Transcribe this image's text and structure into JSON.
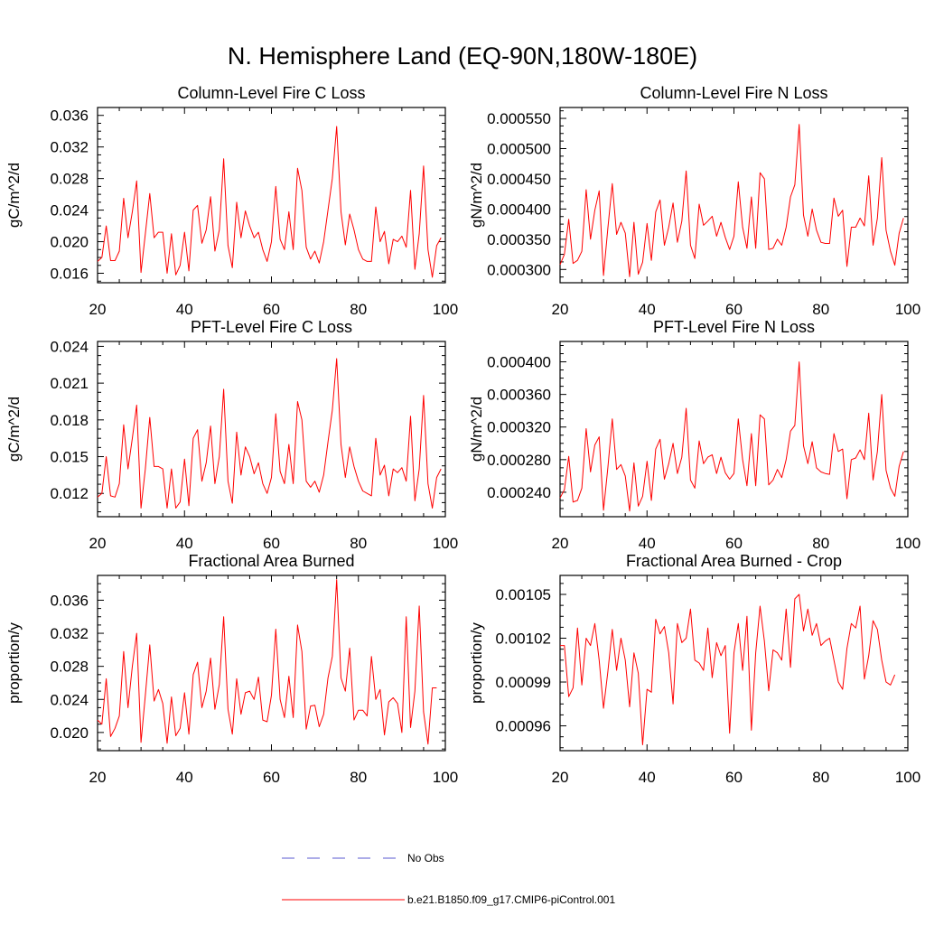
{
  "title": "N. Hemisphere Land (EQ-90N,180W-180E)",
  "colors": {
    "model": "#ff0000",
    "obs": "#5a5ad0",
    "axis": "#000000"
  },
  "legend": {
    "obs_label": "No Obs",
    "model_label": "b.e21.B1850.f09_g17.CMIP6-piControl.001"
  },
  "chart_data": [
    {
      "type": "line",
      "title": "Column-Level Fire C Loss",
      "ylabel": "gC/m^2/d",
      "xlabel": "",
      "xlim": [
        20,
        100
      ],
      "ylim": [
        0.0148,
        0.037
      ],
      "xticks": [
        20,
        40,
        60,
        80,
        100
      ],
      "xtick_labels": [
        "20",
        "40",
        "60",
        "80",
        "100"
      ],
      "yticks": [
        0.016,
        0.02,
        0.024,
        0.028,
        0.032,
        0.036
      ],
      "ytick_labels": [
        "0.016",
        "0.020",
        "0.024",
        "0.028",
        "0.032",
        "0.036"
      ],
      "series": [
        {
          "name": "b.e21.B1850.f09_g17.CMIP6-piControl.001",
          "x_start": 20,
          "values": [
            0.0175,
            0.018,
            0.022,
            0.0176,
            0.0176,
            0.0188,
            0.0255,
            0.0205,
            0.0238,
            0.0277,
            0.0161,
            0.021,
            0.0261,
            0.0205,
            0.0212,
            0.0212,
            0.016,
            0.021,
            0.0158,
            0.017,
            0.0212,
            0.0163,
            0.024,
            0.0246,
            0.0198,
            0.0215,
            0.0257,
            0.0188,
            0.0215,
            0.0305,
            0.0195,
            0.0167,
            0.025,
            0.0205,
            0.0239,
            0.022,
            0.0205,
            0.0212,
            0.019,
            0.0175,
            0.02,
            0.027,
            0.0203,
            0.019,
            0.0238,
            0.019,
            0.0293,
            0.0265,
            0.0193,
            0.0178,
            0.0188,
            0.0173,
            0.02,
            0.024,
            0.028,
            0.0346,
            0.0238,
            0.0196,
            0.0235,
            0.0215,
            0.019,
            0.0178,
            0.0175,
            0.0175,
            0.0244,
            0.02,
            0.0213,
            0.0172,
            0.0203,
            0.02,
            0.0207,
            0.0193,
            0.0265,
            0.0165,
            0.021,
            0.0296,
            0.019,
            0.0155,
            0.0195,
            0.0205
          ]
        }
      ]
    },
    {
      "type": "line",
      "title": "Column-Level Fire N Loss",
      "ylabel": "gN/m^2/d",
      "xlabel": "",
      "xlim": [
        20,
        100
      ],
      "ylim": [
        0.000278,
        0.000568
      ],
      "xticks": [
        20,
        40,
        60,
        80,
        100
      ],
      "xtick_labels": [
        "20",
        "40",
        "60",
        "80",
        "100"
      ],
      "yticks": [
        0.0003,
        0.00035,
        0.0004,
        0.00045,
        0.0005,
        0.00055
      ],
      "ytick_labels": [
        "0.000300",
        "0.000350",
        "0.000400",
        "0.000450",
        "0.000500",
        "0.000550"
      ],
      "series": [
        {
          "name": "b.e21.B1850.f09_g17.CMIP6-piControl.001",
          "x_start": 20,
          "values": [
            0.000308,
            0.000325,
            0.000383,
            0.00031,
            0.000315,
            0.00033,
            0.000432,
            0.00035,
            0.000398,
            0.00043,
            0.00029,
            0.000368,
            0.000442,
            0.000358,
            0.000378,
            0.00036,
            0.000288,
            0.000378,
            0.000292,
            0.000312,
            0.000376,
            0.000315,
            0.000395,
            0.000415,
            0.00034,
            0.00037,
            0.00041,
            0.000345,
            0.00038,
            0.000463,
            0.00034,
            0.000318,
            0.000408,
            0.000373,
            0.00038,
            0.000388,
            0.000355,
            0.000378,
            0.000353,
            0.000333,
            0.000355,
            0.000445,
            0.00037,
            0.000335,
            0.00042,
            0.000335,
            0.00046,
            0.00045,
            0.000333,
            0.000335,
            0.00035,
            0.00034,
            0.00037,
            0.00042,
            0.00044,
            0.00054,
            0.00039,
            0.000355,
            0.0004,
            0.000365,
            0.000345,
            0.000343,
            0.000343,
            0.000418,
            0.000388,
            0.000398,
            0.000305,
            0.00037,
            0.00037,
            0.000385,
            0.000372,
            0.000455,
            0.00034,
            0.000385,
            0.000485,
            0.000365,
            0.00033,
            0.000307,
            0.00036,
            0.000385
          ]
        }
      ]
    },
    {
      "type": "line",
      "title": "PFT-Level Fire C Loss",
      "ylabel": "gC/m^2/d",
      "xlabel": "",
      "xlim": [
        20,
        100
      ],
      "ylim": [
        0.0101,
        0.0244
      ],
      "xticks": [
        20,
        40,
        60,
        80,
        100
      ],
      "xtick_labels": [
        "20",
        "40",
        "60",
        "80",
        "100"
      ],
      "yticks": [
        0.012,
        0.015,
        0.018,
        0.021,
        0.024
      ],
      "ytick_labels": [
        "0.012",
        "0.015",
        "0.018",
        "0.021",
        "0.024"
      ],
      "series": [
        {
          "name": "b.e21.B1850.f09_g17.CMIP6-piControl.001",
          "x_start": 20,
          "values": [
            0.0117,
            0.012,
            0.015,
            0.0118,
            0.0117,
            0.0128,
            0.0176,
            0.014,
            0.0165,
            0.0192,
            0.0108,
            0.014,
            0.0182,
            0.0142,
            0.0142,
            0.014,
            0.0108,
            0.014,
            0.0108,
            0.0113,
            0.0148,
            0.011,
            0.0165,
            0.0172,
            0.013,
            0.0145,
            0.0175,
            0.0128,
            0.015,
            0.0205,
            0.013,
            0.0112,
            0.017,
            0.0135,
            0.0158,
            0.015,
            0.0136,
            0.0145,
            0.0128,
            0.012,
            0.0133,
            0.0185,
            0.0138,
            0.0128,
            0.016,
            0.0128,
            0.0195,
            0.018,
            0.013,
            0.0125,
            0.013,
            0.0121,
            0.0135,
            0.0162,
            0.0188,
            0.023,
            0.016,
            0.0133,
            0.0158,
            0.0142,
            0.013,
            0.0122,
            0.012,
            0.0118,
            0.0165,
            0.0135,
            0.0143,
            0.0118,
            0.014,
            0.0137,
            0.0141,
            0.013,
            0.0183,
            0.0114,
            0.014,
            0.02,
            0.0128,
            0.0108,
            0.0133,
            0.014
          ]
        }
      ]
    },
    {
      "type": "line",
      "title": "PFT-Level Fire N Loss",
      "ylabel": "gN/m^2/d",
      "xlabel": "",
      "xlim": [
        20,
        100
      ],
      "ylim": [
        0.00021,
        0.000425
      ],
      "xticks": [
        20,
        40,
        60,
        80,
        100
      ],
      "xtick_labels": [
        "20",
        "40",
        "60",
        "80",
        "100"
      ],
      "yticks": [
        0.00024,
        0.00028,
        0.00032,
        0.00036,
        0.0004
      ],
      "ytick_labels": [
        "0.000240",
        "0.000280",
        "0.000320",
        "0.000360",
        "0.000400"
      ],
      "series": [
        {
          "name": "b.e21.B1850.f09_g17.CMIP6-piControl.001",
          "x_start": 20,
          "values": [
            0.000233,
            0.000243,
            0.000284,
            0.000228,
            0.00023,
            0.000245,
            0.000318,
            0.000265,
            0.000298,
            0.000308,
            0.000218,
            0.00027,
            0.00033,
            0.000268,
            0.000274,
            0.00026,
            0.000217,
            0.000276,
            0.000223,
            0.000235,
            0.000278,
            0.00023,
            0.000293,
            0.000305,
            0.000256,
            0.000275,
            0.0003,
            0.000263,
            0.000283,
            0.000343,
            0.000255,
            0.000245,
            0.000303,
            0.000275,
            0.000283,
            0.000286,
            0.000263,
            0.000283,
            0.000264,
            0.000256,
            0.000263,
            0.00033,
            0.00028,
            0.000248,
            0.000312,
            0.000248,
            0.000335,
            0.00033,
            0.000249,
            0.000255,
            0.000268,
            0.000258,
            0.00028,
            0.000315,
            0.000322,
            0.0004,
            0.000297,
            0.000275,
            0.000302,
            0.00027,
            0.000265,
            0.000263,
            0.000262,
            0.000312,
            0.00029,
            0.000293,
            0.000232,
            0.00028,
            0.000282,
            0.000292,
            0.00028,
            0.000337,
            0.000255,
            0.00029,
            0.00036,
            0.000267,
            0.000245,
            0.000235,
            0.000272,
            0.00029
          ]
        }
      ]
    },
    {
      "type": "line",
      "title": "Fractional Area Burned",
      "ylabel": "proportion/y",
      "xlabel": "",
      "xlim": [
        20,
        100
      ],
      "ylim": [
        0.0178,
        0.039
      ],
      "xticks": [
        20,
        40,
        60,
        80,
        100
      ],
      "xtick_labels": [
        "20",
        "40",
        "60",
        "80",
        "100"
      ],
      "yticks": [
        0.02,
        0.024,
        0.028,
        0.032,
        0.036
      ],
      "ytick_labels": [
        "0.020",
        "0.024",
        "0.028",
        "0.032",
        "0.036"
      ],
      "series": [
        {
          "name": "b.e21.B1850.f09_g17.CMIP6-piControl.001",
          "x_start": 20,
          "values": [
            0.0215,
            0.021,
            0.0265,
            0.0195,
            0.0205,
            0.022,
            0.0298,
            0.023,
            0.028,
            0.032,
            0.0188,
            0.0245,
            0.0306,
            0.0238,
            0.0252,
            0.0235,
            0.0187,
            0.0243,
            0.0196,
            0.0205,
            0.0248,
            0.0198,
            0.027,
            0.0285,
            0.023,
            0.025,
            0.029,
            0.0228,
            0.0258,
            0.034,
            0.0228,
            0.0198,
            0.0265,
            0.0222,
            0.0248,
            0.025,
            0.024,
            0.0267,
            0.0215,
            0.0213,
            0.0245,
            0.0325,
            0.024,
            0.0218,
            0.0268,
            0.0218,
            0.033,
            0.0298,
            0.0204,
            0.0232,
            0.0233,
            0.0207,
            0.0222,
            0.0266,
            0.0292,
            0.0385,
            0.0266,
            0.025,
            0.0302,
            0.0215,
            0.0227,
            0.0227,
            0.022,
            0.0292,
            0.024,
            0.0252,
            0.0197,
            0.0237,
            0.0242,
            0.0235,
            0.02,
            0.034,
            0.0206,
            0.025,
            0.0353,
            0.0225,
            0.0186,
            0.0254,
            0.0254
          ]
        }
      ]
    },
    {
      "type": "line",
      "title": "Fractional Area Burned - Crop",
      "ylabel": "proportion/y",
      "xlabel": "",
      "xlim": [
        20,
        100
      ],
      "ylim": [
        0.000943,
        0.001063
      ],
      "xticks": [
        20,
        40,
        60,
        80,
        100
      ],
      "xtick_labels": [
        "20",
        "40",
        "60",
        "80",
        "100"
      ],
      "yticks": [
        0.00096,
        0.00099,
        0.00102,
        0.00105
      ],
      "ytick_labels": [
        "0.00096",
        "0.00099",
        "0.00102",
        "0.00105"
      ],
      "series": [
        {
          "name": "b.e21.B1850.f09_g17.CMIP6-piControl.001",
          "x_start": 20,
          "values": [
            0.001015,
            0.001015,
            0.00098,
            0.000986,
            0.001027,
            0.000988,
            0.00102,
            0.001015,
            0.00103,
            0.001005,
            0.000972,
            0.000997,
            0.001026,
            0.000998,
            0.00102,
            0.001005,
            0.000973,
            0.00101,
            0.000996,
            0.000947,
            0.000985,
            0.000983,
            0.001033,
            0.001023,
            0.001028,
            0.00101,
            0.000975,
            0.00103,
            0.001017,
            0.00102,
            0.00104,
            0.001005,
            0.001003,
            0.000998,
            0.001027,
            0.000993,
            0.001017,
            0.001008,
            0.001015,
            0.000955,
            0.00101,
            0.00103,
            0.000998,
            0.001035,
            0.000957,
            0.00101,
            0.001042,
            0.001018,
            0.000984,
            0.001012,
            0.00101,
            0.001005,
            0.00104,
            0.001,
            0.001047,
            0.00105,
            0.001025,
            0.00104,
            0.001022,
            0.00103,
            0.001015,
            0.001018,
            0.00102,
            0.001005,
            0.00099,
            0.000985,
            0.001013,
            0.00103,
            0.001027,
            0.001042,
            0.000992,
            0.001008,
            0.001032,
            0.001026,
            0.001005,
            0.00099,
            0.000988,
            0.000995
          ]
        }
      ]
    }
  ]
}
